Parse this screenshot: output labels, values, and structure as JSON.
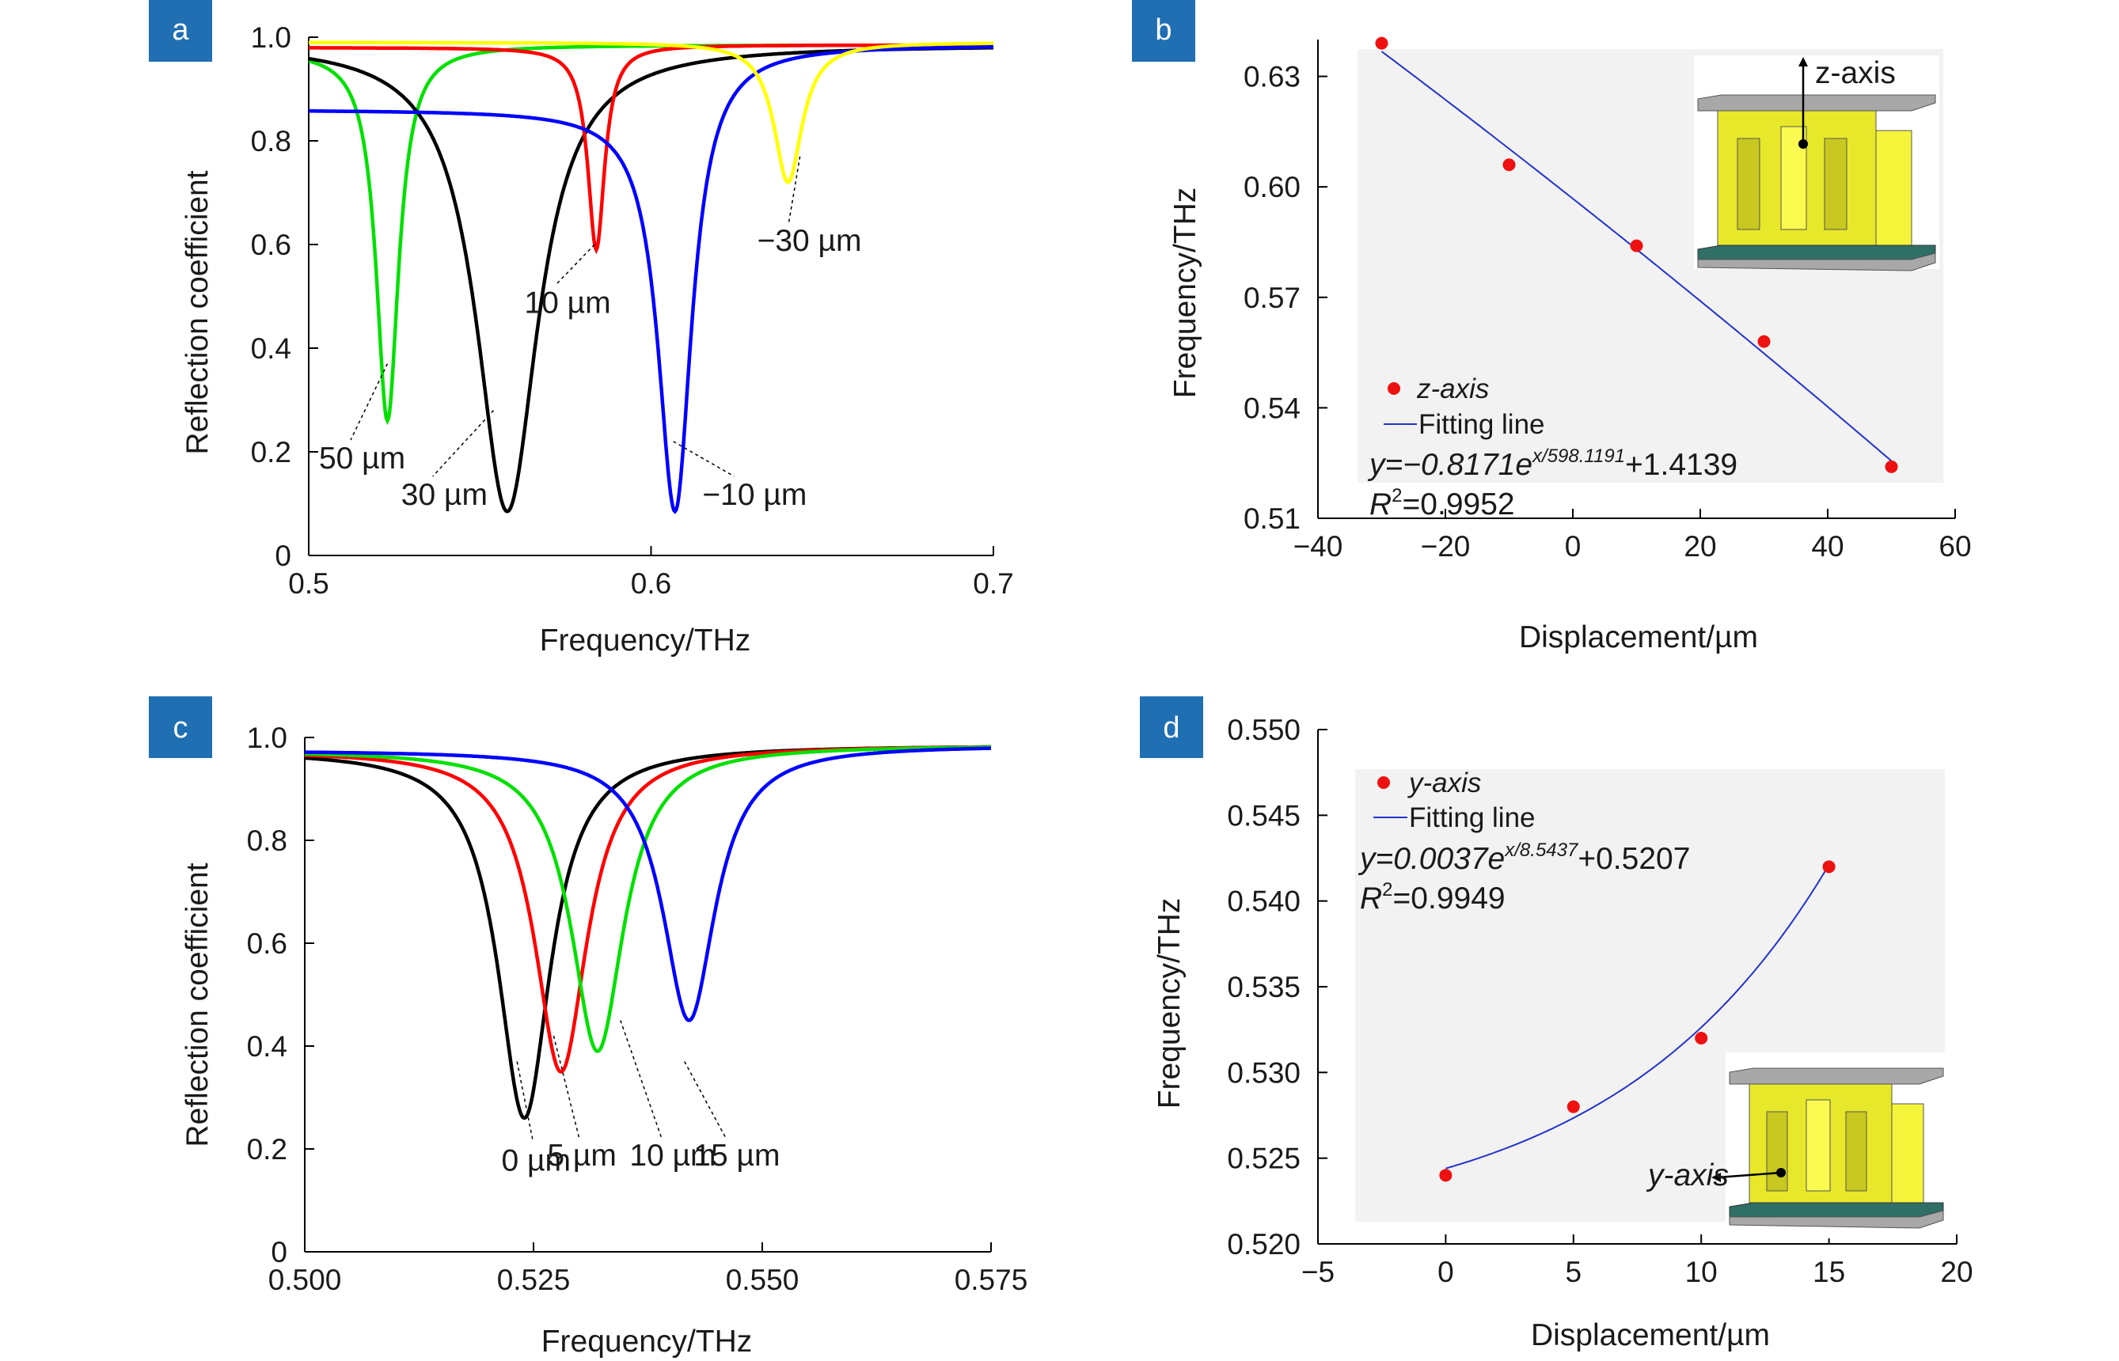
{
  "chart_data": [
    {
      "panel": "a",
      "type": "line",
      "xlabel": "Frequency/THz",
      "ylabel": "Reflection coefficient",
      "xlim": [
        0.5,
        0.7
      ],
      "ylim": [
        0,
        1.0
      ],
      "xticks": [
        "0.5",
        "0.6",
        "0.7"
      ],
      "yticks": [
        "0",
        "0.2",
        "0.4",
        "0.6",
        "0.8",
        "1.0"
      ],
      "series": [
        {
          "color": "#00e000",
          "f0": 0.523,
          "min": 0.26,
          "width": 0.004,
          "base_left": 0.975,
          "base_right": 0.985
        },
        {
          "color": "#000000",
          "f0": 0.558,
          "min": 0.085,
          "width": 0.011,
          "base_left": 0.99,
          "base_right": 0.985
        },
        {
          "color": "#ff0000",
          "f0": 0.584,
          "min": 0.59,
          "width": 0.003,
          "base_left": 0.98,
          "base_right": 0.985
        },
        {
          "color": "#0000ff",
          "f0": 0.607,
          "min": 0.085,
          "width": 0.006,
          "base_left": 0.86,
          "base_right": 0.985
        },
        {
          "color": "#ffff00",
          "f0": 0.64,
          "min": 0.72,
          "width": 0.005,
          "base_left": 0.99,
          "base_right": 0.99
        }
      ],
      "annotations": [
        {
          "text": "50 µm",
          "ax": 0.523,
          "ay": 0.37,
          "tx": 0.503,
          "ty": 0.18
        },
        {
          "text": "30 µm",
          "ax": 0.554,
          "ay": 0.28,
          "tx": 0.527,
          "ty": 0.11
        },
        {
          "text": "10 µm",
          "ax": 0.5835,
          "ay": 0.6,
          "tx": 0.563,
          "ty": 0.48
        },
        {
          "text": "−10 µm",
          "ax": 0.6065,
          "ay": 0.22,
          "tx": 0.615,
          "ty": 0.11
        },
        {
          "text": "−30 µm",
          "ax": 0.6435,
          "ay": 0.77,
          "tx": 0.631,
          "ty": 0.6
        }
      ]
    },
    {
      "panel": "b",
      "type": "scatter",
      "xlabel": "Displacement/µm",
      "ylabel": "Frequency/THz",
      "xlim": [
        -40,
        60
      ],
      "ylim": [
        0.51,
        0.64
      ],
      "xticks": [
        "−40",
        "−20",
        "0",
        "20",
        "40",
        "60"
      ],
      "yticks": [
        "0.51",
        "0.54",
        "0.57",
        "0.60",
        "0.63"
      ],
      "points": [
        {
          "x": -30,
          "y": 0.639
        },
        {
          "x": -10,
          "y": 0.606
        },
        {
          "x": 10,
          "y": 0.584
        },
        {
          "x": 30,
          "y": 0.558
        },
        {
          "x": 50,
          "y": 0.524
        }
      ],
      "fit": {
        "a": -0.8171,
        "b": 598.1191,
        "c": 1.4139
      },
      "legend": {
        "points": "z-axis",
        "line": "Fitting line"
      },
      "equation": {
        "prefix": "y=−0.8171e",
        "exp": "x/598.1191",
        "suffix": "+1.4139"
      },
      "r2": {
        "label": "R",
        "sup": "2",
        "value": "=0.9952"
      },
      "inset_label": "z-axis"
    },
    {
      "panel": "c",
      "type": "line",
      "xlabel": "Frequency/THz",
      "ylabel": "Reflection coefficient",
      "xlim": [
        0.5,
        0.575
      ],
      "ylim": [
        0,
        1.0
      ],
      "xticks": [
        "0.500",
        "0.525",
        "0.550",
        "0.575"
      ],
      "yticks": [
        "0",
        "0.2",
        "0.4",
        "0.6",
        "0.8",
        "1.0"
      ],
      "series": [
        {
          "color": "#000000",
          "f0": 0.524,
          "min": 0.26,
          "width": 0.0035
        },
        {
          "color": "#ff0000",
          "f0": 0.528,
          "min": 0.35,
          "width": 0.0035
        },
        {
          "color": "#00e000",
          "f0": 0.532,
          "min": 0.39,
          "width": 0.0035
        },
        {
          "color": "#0000ff",
          "f0": 0.542,
          "min": 0.45,
          "width": 0.0035
        }
      ],
      "annotations": [
        {
          "text": "0 µm",
          "ax": 0.5232,
          "ay": 0.37,
          "tx": 0.5215,
          "ty": 0.17
        },
        {
          "text": "5 µm",
          "ax": 0.5272,
          "ay": 0.42,
          "tx": 0.5265,
          "ty": 0.18
        },
        {
          "text": "10 µm",
          "ax": 0.5345,
          "ay": 0.45,
          "tx": 0.5355,
          "ty": 0.18
        },
        {
          "text": "15 µm",
          "ax": 0.5415,
          "ay": 0.37,
          "tx": 0.5425,
          "ty": 0.18
        }
      ]
    },
    {
      "panel": "d",
      "type": "scatter",
      "xlabel": "Displacement/µm",
      "ylabel": "Frequency/THz",
      "xlim": [
        -5,
        20
      ],
      "ylim": [
        0.52,
        0.55
      ],
      "xticks": [
        "−5",
        "0",
        "5",
        "10",
        "15",
        "20"
      ],
      "yticks": [
        "0.520",
        "0.525",
        "0.530",
        "0.535",
        "0.540",
        "0.545",
        "0.550"
      ],
      "points": [
        {
          "x": 0,
          "y": 0.524
        },
        {
          "x": 5,
          "y": 0.528
        },
        {
          "x": 10,
          "y": 0.532
        },
        {
          "x": 15,
          "y": 0.542
        }
      ],
      "fit": {
        "a": 0.0037,
        "b": 8.5437,
        "c": 0.5207
      },
      "legend": {
        "points": "y-axis",
        "line": "Fitting line"
      },
      "equation": {
        "prefix": "y=0.0037e",
        "exp": "x/8.5437",
        "suffix": "+0.5207"
      },
      "r2": {
        "label": "R",
        "sup": "2",
        "value": "=0.9949"
      },
      "inset_label": "y-axis"
    }
  ],
  "colors": {
    "badge": "#1f6fb2",
    "marker": "#ee1111",
    "fit_line": "#2233cc",
    "inset_gold": "#e8e82a",
    "inset_gray": "#a8a8a8",
    "inset_teal": "#2f6f66"
  }
}
